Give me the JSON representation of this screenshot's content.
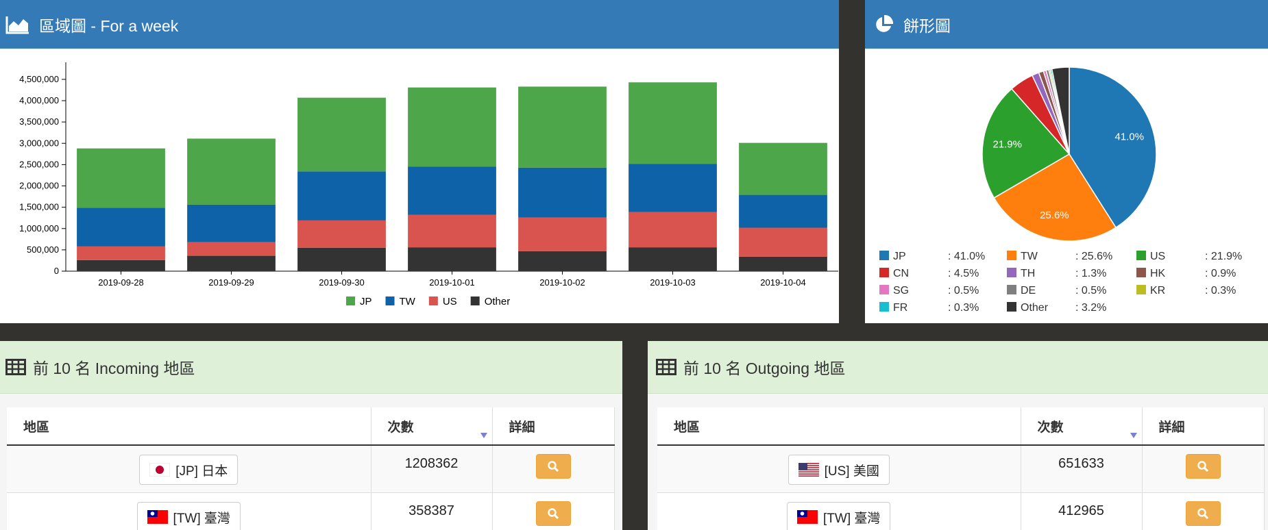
{
  "chart_data": [
    {
      "type": "bar",
      "stacked": true,
      "title": "區域圖 - For a week",
      "categories": [
        "2019-09-28",
        "2019-09-29",
        "2019-09-30",
        "2019-10-01",
        "2019-10-02",
        "2019-10-03",
        "2019-10-04"
      ],
      "series": [
        {
          "name": "JP",
          "color": "#4ea64a",
          "values": [
            1390000,
            1550000,
            1730000,
            1860000,
            1900000,
            1910000,
            1220000
          ]
        },
        {
          "name": "TW",
          "color": "#0e62a8",
          "values": [
            910000,
            880000,
            1150000,
            1130000,
            1170000,
            1130000,
            770000
          ]
        },
        {
          "name": "US",
          "color": "#d9534f",
          "values": [
            320000,
            320000,
            640000,
            760000,
            790000,
            830000,
            680000
          ]
        },
        {
          "name": "Other",
          "color": "#333333",
          "values": [
            260000,
            360000,
            550000,
            560000,
            470000,
            560000,
            340000
          ]
        }
      ],
      "ylim": [
        0,
        4900000
      ],
      "yticks": [
        0,
        {
          "value": 500000,
          "label": "500,000"
        },
        {
          "value": 1000000,
          "label": "1,000,000"
        },
        {
          "value": 1500000,
          "label": "1,500,000"
        },
        {
          "value": 2000000,
          "label": "2,000,000"
        },
        {
          "value": 2500000,
          "label": "2,500,000"
        },
        {
          "value": 3000000,
          "label": "3,000,000"
        },
        {
          "value": 3500000,
          "label": "3,500,000"
        },
        {
          "value": 4000000,
          "label": "4,000,000"
        },
        {
          "value": 4500000,
          "label": "4,500,000"
        }
      ],
      "legend": "bottom"
    },
    {
      "type": "pie",
      "title": "餅形圖",
      "categories": [
        "JP",
        "TW",
        "US",
        "CN",
        "TH",
        "HK",
        "SG",
        "DE",
        "KR",
        "FR",
        "Other"
      ],
      "values": [
        41.0,
        25.6,
        21.9,
        4.5,
        1.3,
        0.9,
        0.5,
        0.5,
        0.3,
        0.3,
        3.2
      ],
      "value_labels": [
        "41.0%",
        "25.6%",
        "21.9%",
        "4.5%",
        "1.3%",
        "0.9%",
        "0.5%",
        "0.5%",
        "0.3%",
        "0.3%",
        "3.2%"
      ],
      "legend_labels": [
        ": 41.0%",
        ": 25.6%",
        ": 21.9%",
        ": 4.5%",
        ": 1.3%",
        ": 0.9%",
        ": 0.5%",
        ": 0.5%",
        ": 0.3%",
        ": 0.3%",
        ": 3.2%"
      ],
      "colors": [
        "#1f77b4",
        "#ff7f0e",
        "#2ca02c",
        "#d62728",
        "#9467bd",
        "#8c564b",
        "#e377c2",
        "#7f7f7f",
        "#bcbd22",
        "#17becf",
        "#333333"
      ],
      "legend": "bottom"
    }
  ],
  "tables": [
    {
      "title": "前 10 名 Incoming 地區",
      "columns": [
        "地區",
        "次數",
        "詳細"
      ],
      "rows": [
        [
          "[JP] 日本",
          1208362
        ],
        [
          "[TW] 臺灣",
          358387
        ]
      ]
    },
    {
      "title": "前 10 名 Outgoing 地區",
      "columns": [
        "地區",
        "次數",
        "詳細"
      ],
      "rows": [
        [
          "[US] 美國",
          651633
        ],
        [
          "[TW] 臺灣",
          412965
        ]
      ]
    }
  ]
}
